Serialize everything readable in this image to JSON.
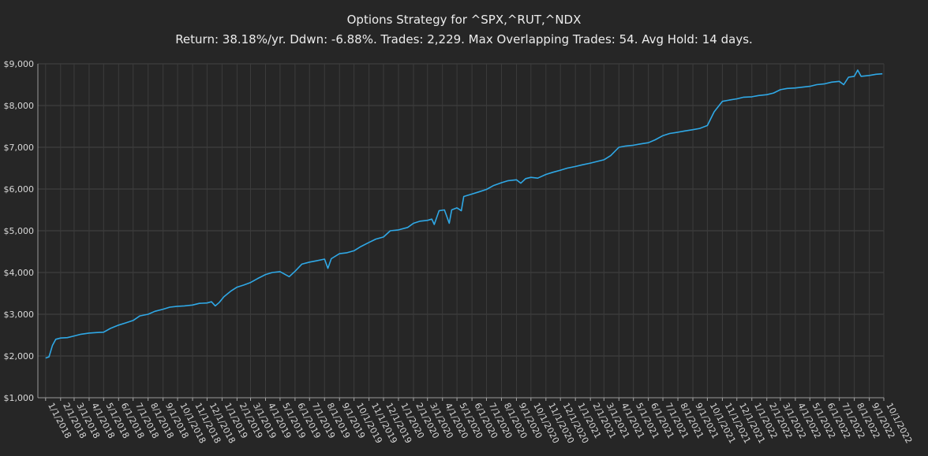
{
  "chart_data": {
    "type": "line",
    "title": "Options Strategy for ^SPX,^RUT,^NDX",
    "subtitle": "Return: 38.18%/yr. Ddwn: -6.88%. Trades: 2,229. Max Overlapping Trades: 54. Avg Hold: 14 days.",
    "xlabel": "",
    "ylabel": "",
    "ylim": [
      1000,
      9000
    ],
    "y_ticks": [
      "$1,000",
      "$2,000",
      "$3,000",
      "$4,000",
      "$5,000",
      "$6,000",
      "$7,000",
      "$8,000",
      "$9,000"
    ],
    "x_ticks": [
      "1/1/2018",
      "2/1/2018",
      "3/1/2018",
      "4/1/2018",
      "5/1/2018",
      "6/1/2018",
      "7/1/2018",
      "8/1/2018",
      "9/1/2018",
      "10/1/2018",
      "11/1/2018",
      "12/1/2018",
      "1/1/2019",
      "2/1/2019",
      "3/1/2019",
      "4/1/2019",
      "5/1/2019",
      "6/1/2019",
      "7/1/2019",
      "8/1/2019",
      "9/1/2019",
      "10/1/2019",
      "11/1/2019",
      "12/1/2019",
      "1/1/2020",
      "2/1/2020",
      "3/1/2020",
      "4/1/2020",
      "5/1/2020",
      "6/1/2020",
      "7/1/2020",
      "8/1/2020",
      "9/1/2020",
      "10/1/2020",
      "11/1/2020",
      "12/1/2020",
      "1/1/2021",
      "2/1/2021",
      "3/1/2021",
      "4/1/2021",
      "5/1/2021",
      "6/1/2021",
      "7/1/2021",
      "8/1/2021",
      "9/1/2021",
      "10/1/2021",
      "11/1/2021",
      "12/1/2021",
      "1/1/2022",
      "2/1/2022",
      "3/1/2022",
      "4/1/2022",
      "5/1/2022",
      "6/1/2022",
      "7/1/2022",
      "8/1/2022",
      "9/1/2022",
      "10/1/2022"
    ],
    "grid": true,
    "legend": "none",
    "line_color": "#2fa8e6",
    "series": [
      {
        "points": [
          [
            "2018-01-01",
            1950
          ],
          [
            "2018-01-08",
            1980
          ],
          [
            "2018-01-15",
            2250
          ],
          [
            "2018-01-22",
            2400
          ],
          [
            "2018-02-01",
            2430
          ],
          [
            "2018-02-15",
            2440
          ],
          [
            "2018-03-01",
            2480
          ],
          [
            "2018-03-15",
            2520
          ],
          [
            "2018-04-01",
            2550
          ],
          [
            "2018-04-15",
            2560
          ],
          [
            "2018-05-01",
            2570
          ],
          [
            "2018-05-15",
            2660
          ],
          [
            "2018-06-01",
            2740
          ],
          [
            "2018-06-15",
            2790
          ],
          [
            "2018-07-01",
            2850
          ],
          [
            "2018-07-15",
            2960
          ],
          [
            "2018-08-01",
            3000
          ],
          [
            "2018-08-15",
            3070
          ],
          [
            "2018-09-01",
            3120
          ],
          [
            "2018-09-15",
            3170
          ],
          [
            "2018-10-01",
            3190
          ],
          [
            "2018-10-15",
            3200
          ],
          [
            "2018-11-01",
            3220
          ],
          [
            "2018-11-15",
            3260
          ],
          [
            "2018-12-01",
            3270
          ],
          [
            "2018-12-10",
            3300
          ],
          [
            "2018-12-18",
            3200
          ],
          [
            "2018-12-26",
            3280
          ],
          [
            "2019-01-05",
            3420
          ],
          [
            "2019-01-20",
            3560
          ],
          [
            "2019-02-01",
            3650
          ],
          [
            "2019-02-15",
            3700
          ],
          [
            "2019-03-01",
            3760
          ],
          [
            "2019-03-15",
            3850
          ],
          [
            "2019-04-01",
            3950
          ],
          [
            "2019-04-15",
            4000
          ],
          [
            "2019-05-01",
            4020
          ],
          [
            "2019-05-20",
            3900
          ],
          [
            "2019-06-01",
            4030
          ],
          [
            "2019-06-15",
            4200
          ],
          [
            "2019-07-01",
            4250
          ],
          [
            "2019-07-15",
            4280
          ],
          [
            "2019-08-01",
            4320
          ],
          [
            "2019-08-08",
            4100
          ],
          [
            "2019-08-15",
            4330
          ],
          [
            "2019-09-01",
            4450
          ],
          [
            "2019-09-15",
            4470
          ],
          [
            "2019-10-01",
            4520
          ],
          [
            "2019-10-15",
            4620
          ],
          [
            "2019-11-01",
            4720
          ],
          [
            "2019-11-15",
            4800
          ],
          [
            "2019-12-01",
            4850
          ],
          [
            "2019-12-15",
            5000
          ],
          [
            "2020-01-01",
            5020
          ],
          [
            "2020-01-20",
            5080
          ],
          [
            "2020-02-01",
            5180
          ],
          [
            "2020-02-15",
            5230
          ],
          [
            "2020-03-01",
            5250
          ],
          [
            "2020-03-10",
            5280
          ],
          [
            "2020-03-15",
            5150
          ],
          [
            "2020-03-25",
            5480
          ],
          [
            "2020-04-05",
            5500
          ],
          [
            "2020-04-15",
            5180
          ],
          [
            "2020-04-20",
            5500
          ],
          [
            "2020-05-01",
            5550
          ],
          [
            "2020-05-10",
            5480
          ],
          [
            "2020-05-15",
            5820
          ],
          [
            "2020-06-01",
            5880
          ],
          [
            "2020-06-15",
            5930
          ],
          [
            "2020-07-01",
            5990
          ],
          [
            "2020-07-15",
            6080
          ],
          [
            "2020-08-01",
            6150
          ],
          [
            "2020-08-15",
            6200
          ],
          [
            "2020-09-01",
            6220
          ],
          [
            "2020-09-10",
            6140
          ],
          [
            "2020-09-20",
            6250
          ],
          [
            "2020-10-01",
            6280
          ],
          [
            "2020-10-15",
            6260
          ],
          [
            "2020-11-01",
            6350
          ],
          [
            "2020-11-15",
            6400
          ],
          [
            "2020-12-01",
            6450
          ],
          [
            "2020-12-15",
            6500
          ],
          [
            "2021-01-01",
            6540
          ],
          [
            "2021-01-15",
            6580
          ],
          [
            "2021-02-01",
            6620
          ],
          [
            "2021-02-15",
            6660
          ],
          [
            "2021-03-01",
            6700
          ],
          [
            "2021-03-15",
            6800
          ],
          [
            "2021-04-01",
            7000
          ],
          [
            "2021-04-15",
            7030
          ],
          [
            "2021-05-01",
            7050
          ],
          [
            "2021-05-15",
            7080
          ],
          [
            "2021-06-01",
            7110
          ],
          [
            "2021-06-15",
            7180
          ],
          [
            "2021-07-01",
            7280
          ],
          [
            "2021-07-15",
            7330
          ],
          [
            "2021-08-01",
            7360
          ],
          [
            "2021-08-15",
            7390
          ],
          [
            "2021-09-01",
            7420
          ],
          [
            "2021-09-15",
            7450
          ],
          [
            "2021-10-01",
            7520
          ],
          [
            "2021-10-15",
            7850
          ],
          [
            "2021-11-01",
            8100
          ],
          [
            "2021-11-15",
            8130
          ],
          [
            "2021-12-01",
            8160
          ],
          [
            "2021-12-15",
            8200
          ],
          [
            "2022-01-01",
            8210
          ],
          [
            "2022-01-15",
            8240
          ],
          [
            "2022-02-01",
            8260
          ],
          [
            "2022-02-15",
            8300
          ],
          [
            "2022-03-01",
            8380
          ],
          [
            "2022-03-15",
            8410
          ],
          [
            "2022-04-01",
            8420
          ],
          [
            "2022-04-15",
            8440
          ],
          [
            "2022-05-01",
            8460
          ],
          [
            "2022-05-15",
            8500
          ],
          [
            "2022-06-01",
            8520
          ],
          [
            "2022-06-15",
            8560
          ],
          [
            "2022-07-01",
            8580
          ],
          [
            "2022-07-10",
            8500
          ],
          [
            "2022-07-20",
            8680
          ],
          [
            "2022-08-01",
            8700
          ],
          [
            "2022-08-08",
            8850
          ],
          [
            "2022-08-15",
            8700
          ],
          [
            "2022-09-01",
            8720
          ],
          [
            "2022-09-15",
            8750
          ],
          [
            "2022-09-28",
            8760
          ]
        ]
      }
    ]
  }
}
